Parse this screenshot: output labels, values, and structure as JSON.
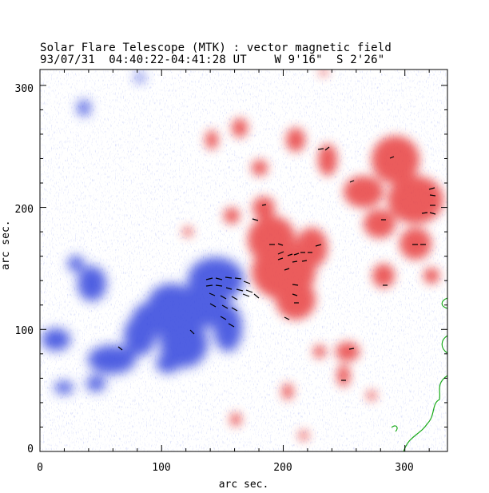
{
  "title": {
    "line1": "Solar Flare Telescope (MTK) : vector magnetic field",
    "line2": "93/07/31  04:40:22-04:41:28 UT    W 9'16\"  S 2'26\""
  },
  "axes": {
    "xlabel": "arc sec.",
    "ylabel": "arc sec.",
    "x_ticks": [
      "0",
      "100",
      "200",
      "300"
    ],
    "y_ticks": [
      "0",
      "100",
      "200",
      "300"
    ],
    "xlim": [
      0,
      335
    ],
    "ylim": [
      0,
      313
    ]
  },
  "colors": {
    "positive": "#e8403f",
    "negative": "#3344dd",
    "contour": "#1aaa1a",
    "vector": "#000000"
  }
}
